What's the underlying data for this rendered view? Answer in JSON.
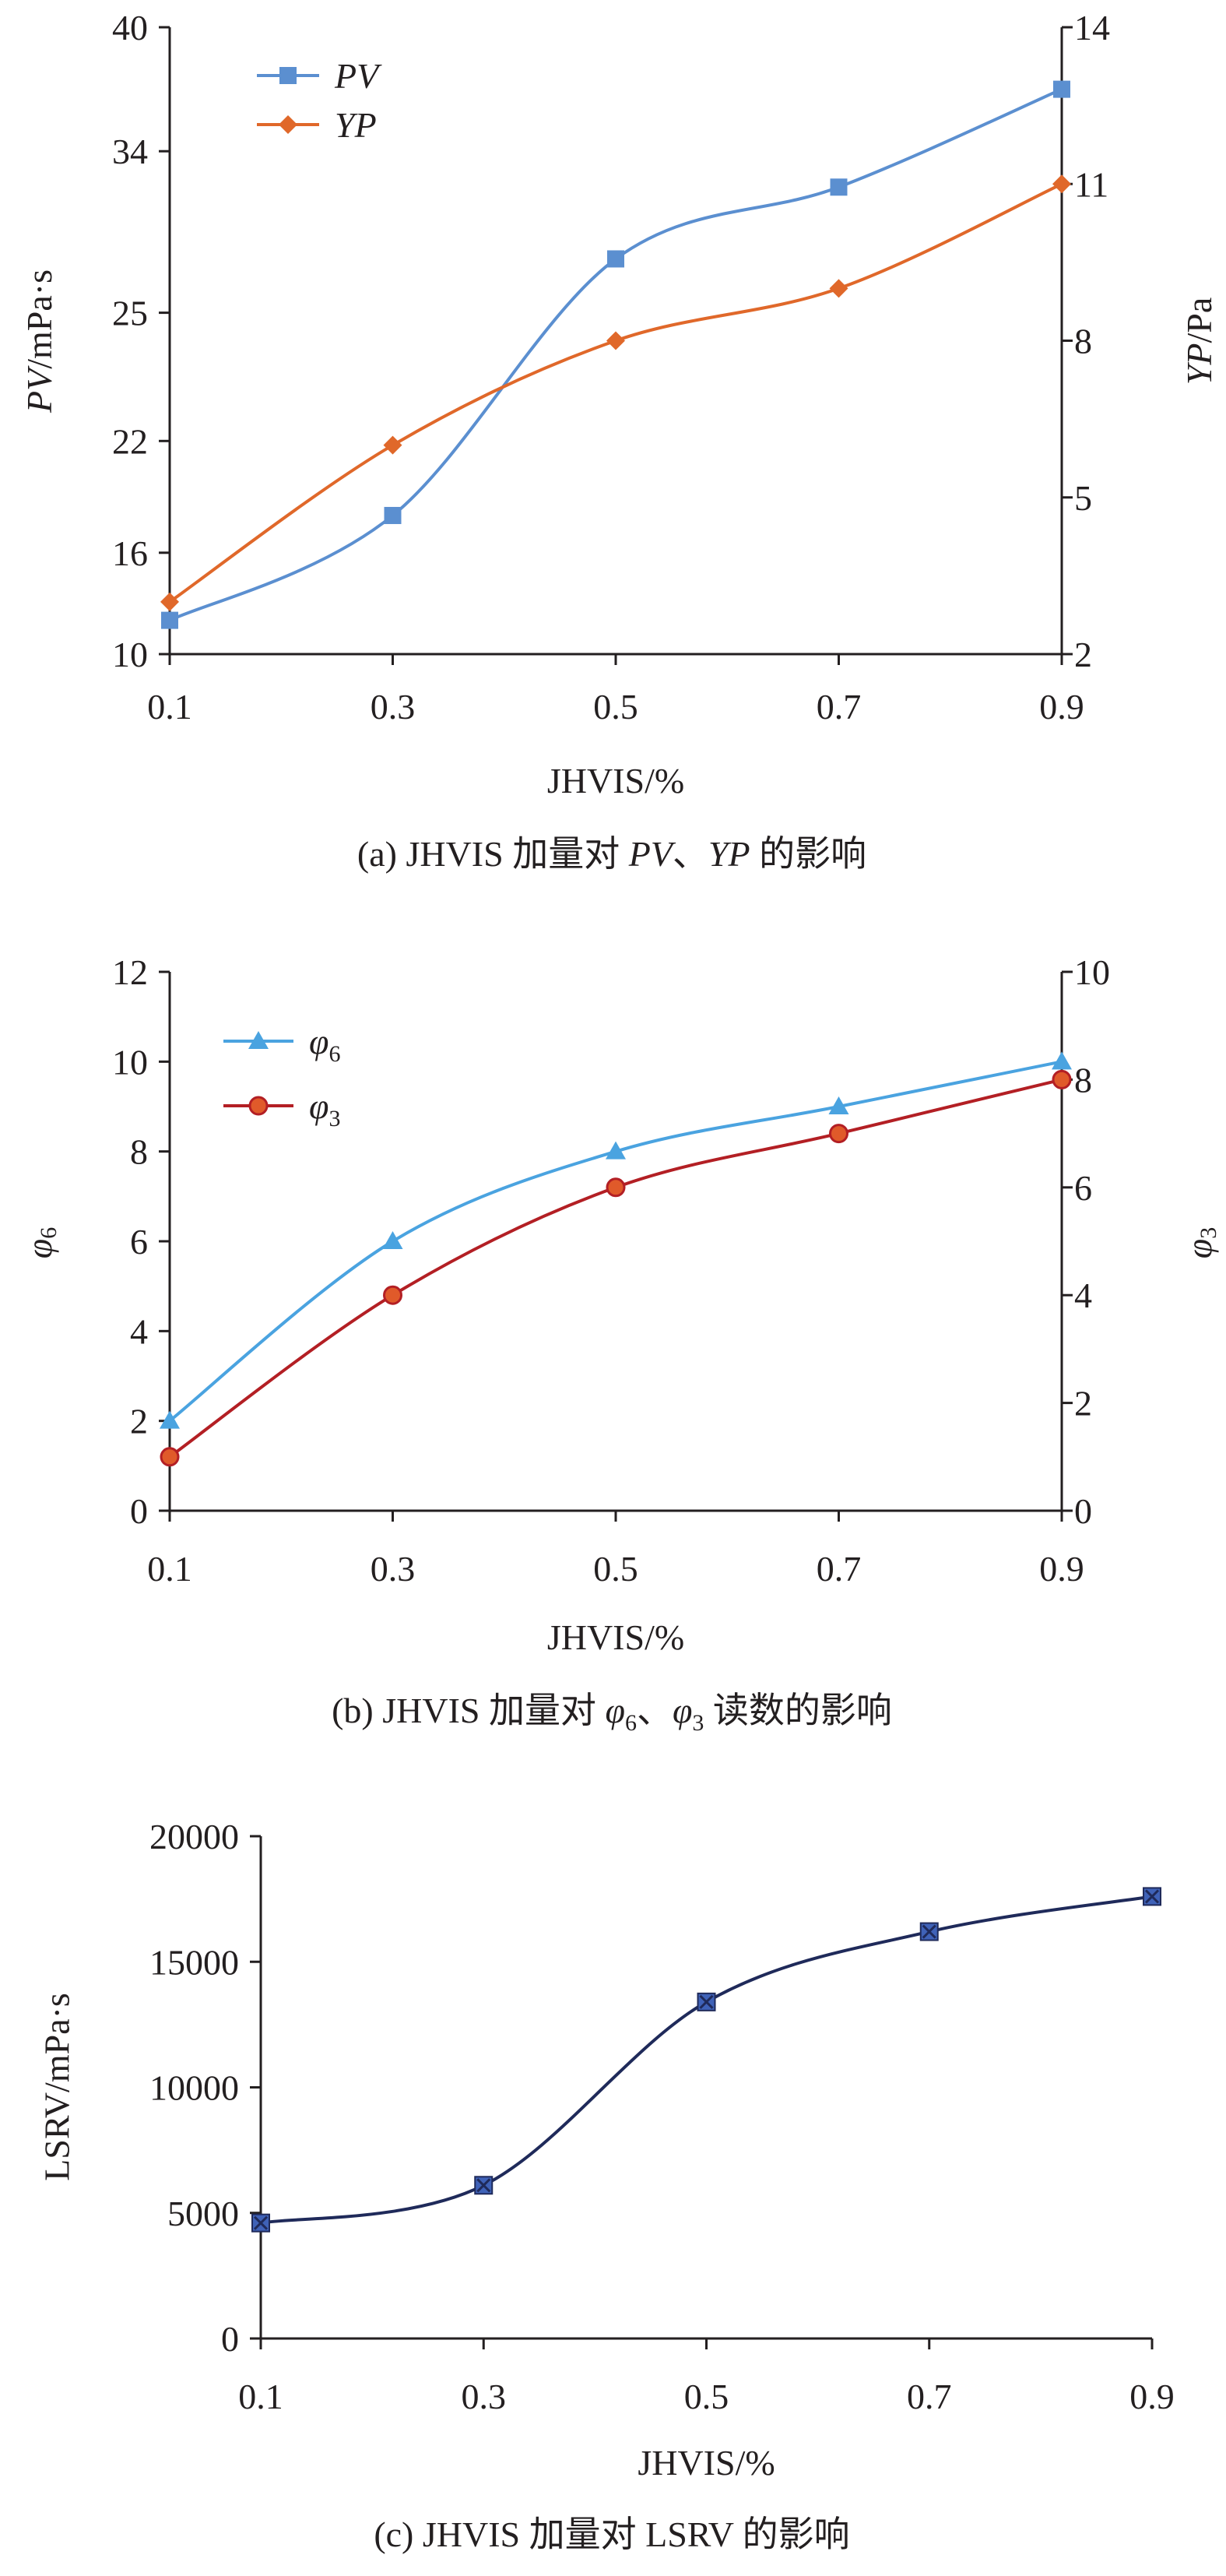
{
  "chart_data": [
    {
      "type": "line",
      "x": [
        0.1,
        0.3,
        0.5,
        0.7,
        0.9
      ],
      "x_ticks": [
        "0.1",
        "0.3",
        "0.5",
        "0.7",
        "0.9"
      ],
      "xlim": [
        0.1,
        0.9
      ],
      "xlabel": "JHVIS/%",
      "ylabel": {
        "var": "PV",
        "unit": "/mPa·s"
      },
      "ylabel_right": {
        "var": "YP",
        "unit": "/Pa"
      },
      "y_ticks": [
        "10",
        "16",
        "22",
        "25",
        "34",
        "40"
      ],
      "y_ticks_right": [
        "2",
        "5",
        "8",
        "11",
        "14"
      ],
      "ylim_right": [
        2,
        14
      ],
      "caption": {
        "prefix": "(a) JHVIS 加量对 ",
        "v1": "PV",
        "sep": "、",
        "v2": "YP",
        "suffix": " 的影响"
      },
      "legend_position": "top-left",
      "grid": false,
      "series": [
        {
          "name": "PV",
          "axis": "left",
          "color": "#5b8fd0",
          "marker": "square",
          "values": [
            12,
            18,
            28,
            32,
            37
          ]
        },
        {
          "name": "YP",
          "axis": "right",
          "color": "#e0682a",
          "marker": "diamond",
          "values": [
            3,
            6,
            8,
            9,
            11
          ]
        }
      ]
    },
    {
      "type": "line",
      "x": [
        0.1,
        0.3,
        0.5,
        0.7,
        0.9
      ],
      "x_ticks": [
        "0.1",
        "0.3",
        "0.5",
        "0.7",
        "0.9"
      ],
      "xlim": [
        0.1,
        0.9
      ],
      "xlabel": "JHVIS/%",
      "ylabel": {
        "var": "φ",
        "sub": "6"
      },
      "ylabel_right": {
        "var": "φ",
        "sub": "3"
      },
      "ylim": [
        0,
        12
      ],
      "ylim_right": [
        0,
        10
      ],
      "y_ticks": [
        "0",
        "2",
        "4",
        "6",
        "8",
        "10",
        "12"
      ],
      "y_ticks_right": [
        "0",
        "2",
        "4",
        "6",
        "8",
        "10"
      ],
      "caption": {
        "prefix": "(b) JHVIS 加量对 ",
        "v1": "φ",
        "s1": "6",
        "sep": "、",
        "v2": "φ",
        "s2": "3",
        "suffix": " 读数的影响"
      },
      "legend_position": "top-left",
      "grid": false,
      "series": [
        {
          "name": "φ",
          "sub": "6",
          "axis": "left",
          "color": "#4aa3e0",
          "marker": "triangle",
          "values": [
            2,
            6,
            8,
            9,
            10
          ]
        },
        {
          "name": "φ",
          "sub": "3",
          "axis": "right",
          "color": "#b31f24",
          "marker": "circle",
          "values": [
            1,
            4,
            6,
            7,
            8
          ]
        }
      ]
    },
    {
      "type": "line",
      "x": [
        0.1,
        0.3,
        0.5,
        0.7,
        0.9
      ],
      "x_ticks": [
        "0.1",
        "0.3",
        "0.5",
        "0.7",
        "0.9"
      ],
      "xlim": [
        0.1,
        0.9
      ],
      "xlabel": "JHVIS/%",
      "ylabel": "LSRV/mPa·s",
      "ylim": [
        0,
        20000
      ],
      "y_ticks": [
        "0",
        "5000",
        "10000",
        "15000",
        "20000"
      ],
      "caption": "(c) JHVIS 加量对 LSRV 的影响",
      "grid": false,
      "series": [
        {
          "axis": "left",
          "color": "#1f2a5a",
          "marker": "x-square",
          "values": [
            4600,
            6100,
            13400,
            16200,
            17600
          ]
        }
      ]
    }
  ]
}
